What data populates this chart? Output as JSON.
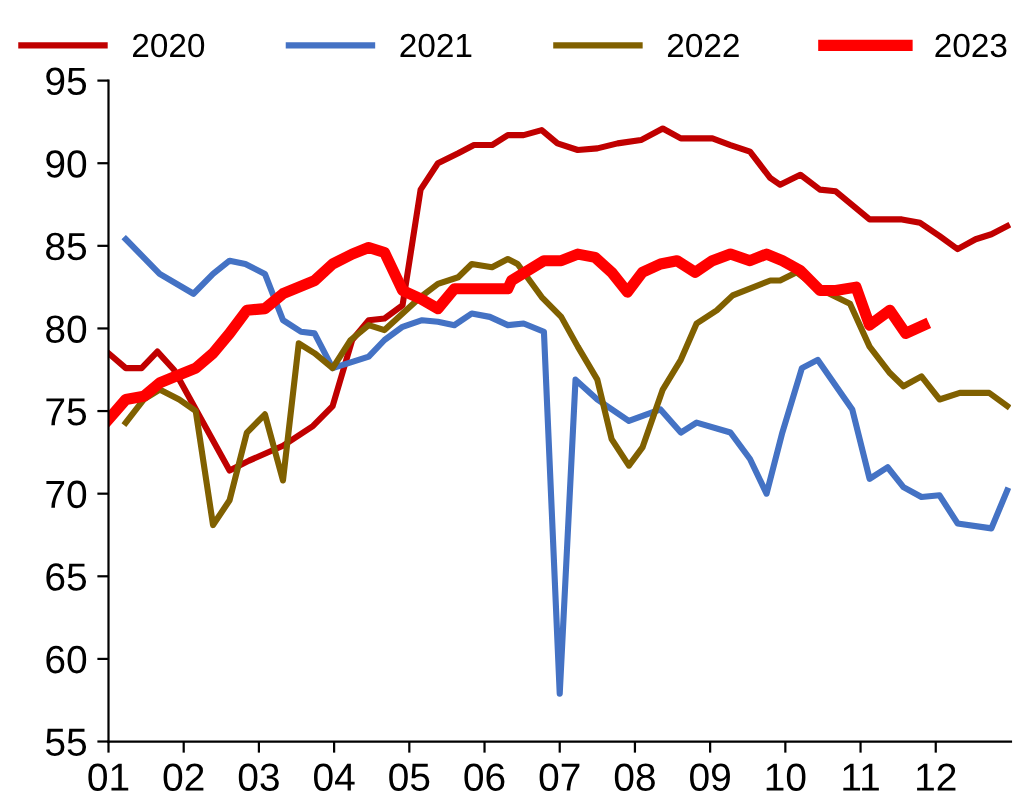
{
  "chart_data": {
    "type": "line",
    "legend": "top",
    "grid": false,
    "marker": "none",
    "line_style": "solid",
    "xlim": [
      1,
      13
    ],
    "ylim": [
      55,
      95
    ],
    "yticks": [
      55,
      60,
      65,
      70,
      75,
      80,
      85,
      90,
      95
    ],
    "xticks": [
      {
        "value": 1,
        "label": "01"
      },
      {
        "value": 2,
        "label": "02"
      },
      {
        "value": 3,
        "label": "03"
      },
      {
        "value": 4,
        "label": "04"
      },
      {
        "value": 5,
        "label": "05"
      },
      {
        "value": 6,
        "label": "06"
      },
      {
        "value": 7,
        "label": "07"
      },
      {
        "value": 8,
        "label": "08"
      },
      {
        "value": 9,
        "label": "09"
      },
      {
        "value": 10,
        "label": "10"
      },
      {
        "value": 11,
        "label": "11"
      },
      {
        "value": 12,
        "label": "12"
      }
    ],
    "series": [
      {
        "name": "2020",
        "color": "#c00000",
        "x": [
          1.0,
          1.23,
          1.44,
          1.65,
          1.87,
          2.61,
          2.87,
          3.32,
          3.72,
          3.98,
          4.24,
          4.46,
          4.67,
          4.91,
          5.15,
          5.38,
          5.65,
          5.86,
          6.1,
          6.31,
          6.52,
          6.76,
          6.97,
          7.24,
          7.5,
          7.77,
          8.08,
          8.37,
          8.61,
          9.03,
          9.27,
          9.53,
          9.8,
          9.93,
          10.2,
          10.46,
          10.67,
          11.12,
          11.55,
          11.79,
          12.05,
          12.29,
          12.53,
          12.74,
          12.95
        ],
        "values": [
          78.5,
          77.6,
          77.6,
          78.6,
          77.5,
          71.4,
          72.0,
          72.9,
          74.1,
          75.3,
          79.3,
          80.5,
          80.6,
          81.4,
          88.4,
          90.0,
          90.6,
          91.1,
          91.1,
          91.7,
          91.7,
          92.0,
          91.2,
          90.8,
          90.9,
          91.2,
          91.4,
          92.1,
          91.5,
          91.5,
          91.1,
          90.7,
          89.1,
          88.7,
          89.3,
          88.4,
          88.3,
          86.6,
          86.6,
          86.4,
          85.6,
          84.8,
          85.4,
          85.7,
          86.2
        ]
      },
      {
        "name": "2021",
        "color": "#4472c4",
        "x": [
          1.23,
          1.68,
          2.13,
          2.39,
          2.61,
          2.82,
          3.08,
          3.32,
          3.56,
          3.74,
          3.98,
          4.19,
          4.46,
          4.67,
          4.91,
          5.17,
          5.38,
          5.6,
          5.83,
          6.07,
          6.31,
          6.52,
          6.79,
          7.0,
          7.21,
          7.5,
          7.92,
          8.34,
          8.61,
          8.82,
          9.27,
          9.53,
          9.75,
          9.96,
          10.22,
          10.43,
          10.89,
          11.12,
          11.36,
          11.57,
          11.81,
          12.05,
          12.29,
          12.74,
          12.95
        ],
        "values": [
          85.4,
          83.3,
          82.1,
          83.3,
          84.1,
          83.9,
          83.3,
          80.5,
          79.8,
          79.7,
          77.6,
          77.9,
          78.3,
          79.3,
          80.1,
          80.5,
          80.4,
          80.2,
          80.9,
          80.7,
          80.2,
          80.3,
          79.8,
          57.9,
          76.9,
          75.7,
          74.4,
          75.1,
          73.7,
          74.3,
          73.7,
          72.1,
          70.0,
          73.7,
          77.6,
          78.1,
          75.1,
          70.9,
          71.6,
          70.4,
          69.8,
          69.9,
          68.2,
          67.9,
          70.2
        ]
      },
      {
        "name": "2022",
        "color": "#806000",
        "x": [
          1.23,
          1.47,
          1.68,
          1.94,
          2.16,
          2.39,
          2.61,
          2.84,
          3.08,
          3.32,
          3.53,
          3.74,
          3.98,
          4.22,
          4.46,
          4.67,
          4.91,
          5.15,
          5.38,
          5.65,
          5.83,
          6.1,
          6.31,
          6.44,
          6.76,
          7.02,
          7.24,
          7.5,
          7.69,
          7.92,
          8.1,
          8.37,
          8.61,
          8.82,
          9.09,
          9.3,
          9.8,
          9.93,
          10.15,
          10.41,
          10.86,
          11.12,
          11.39,
          11.57,
          11.81,
          12.05,
          12.32,
          12.71,
          12.95
        ],
        "values": [
          74.3,
          75.7,
          76.3,
          75.7,
          75.0,
          68.1,
          69.6,
          73.7,
          74.8,
          70.8,
          79.1,
          78.5,
          77.6,
          79.3,
          80.2,
          79.9,
          80.9,
          81.9,
          82.7,
          83.1,
          83.9,
          83.7,
          84.2,
          83.9,
          81.9,
          80.7,
          78.9,
          76.9,
          73.3,
          71.7,
          72.8,
          76.3,
          78.1,
          80.3,
          81.1,
          82.0,
          82.9,
          82.9,
          83.4,
          82.5,
          81.5,
          78.9,
          77.3,
          76.5,
          77.1,
          75.7,
          76.1,
          76.1,
          75.3
        ]
      },
      {
        "name": "2023",
        "color": "#ff0000",
        "x": [
          1.0,
          1.23,
          1.47,
          1.68,
          1.89,
          2.16,
          2.39,
          2.61,
          2.84,
          3.08,
          3.32,
          3.53,
          3.74,
          3.98,
          4.24,
          4.46,
          4.67,
          4.91,
          5.15,
          5.38,
          5.6,
          5.83,
          6.1,
          6.31,
          6.36,
          6.79,
          7.02,
          7.24,
          7.47,
          7.69,
          7.9,
          8.1,
          8.34,
          8.56,
          8.8,
          9.03,
          9.27,
          9.53,
          9.75,
          9.96,
          10.2,
          10.46,
          10.67,
          10.94,
          11.12,
          11.39,
          11.6,
          11.84
        ],
        "values": [
          74.5,
          75.7,
          75.9,
          76.7,
          77.1,
          77.6,
          78.5,
          79.7,
          81.1,
          81.2,
          82.1,
          82.5,
          82.9,
          83.9,
          84.5,
          84.9,
          84.6,
          82.3,
          81.8,
          81.2,
          82.4,
          82.4,
          82.4,
          82.4,
          82.9,
          84.1,
          84.1,
          84.5,
          84.3,
          83.4,
          82.2,
          83.4,
          83.9,
          84.1,
          83.4,
          84.1,
          84.5,
          84.1,
          84.5,
          84.1,
          83.5,
          82.3,
          82.3,
          82.5,
          80.2,
          81.1,
          79.7,
          80.2
        ]
      }
    ]
  }
}
